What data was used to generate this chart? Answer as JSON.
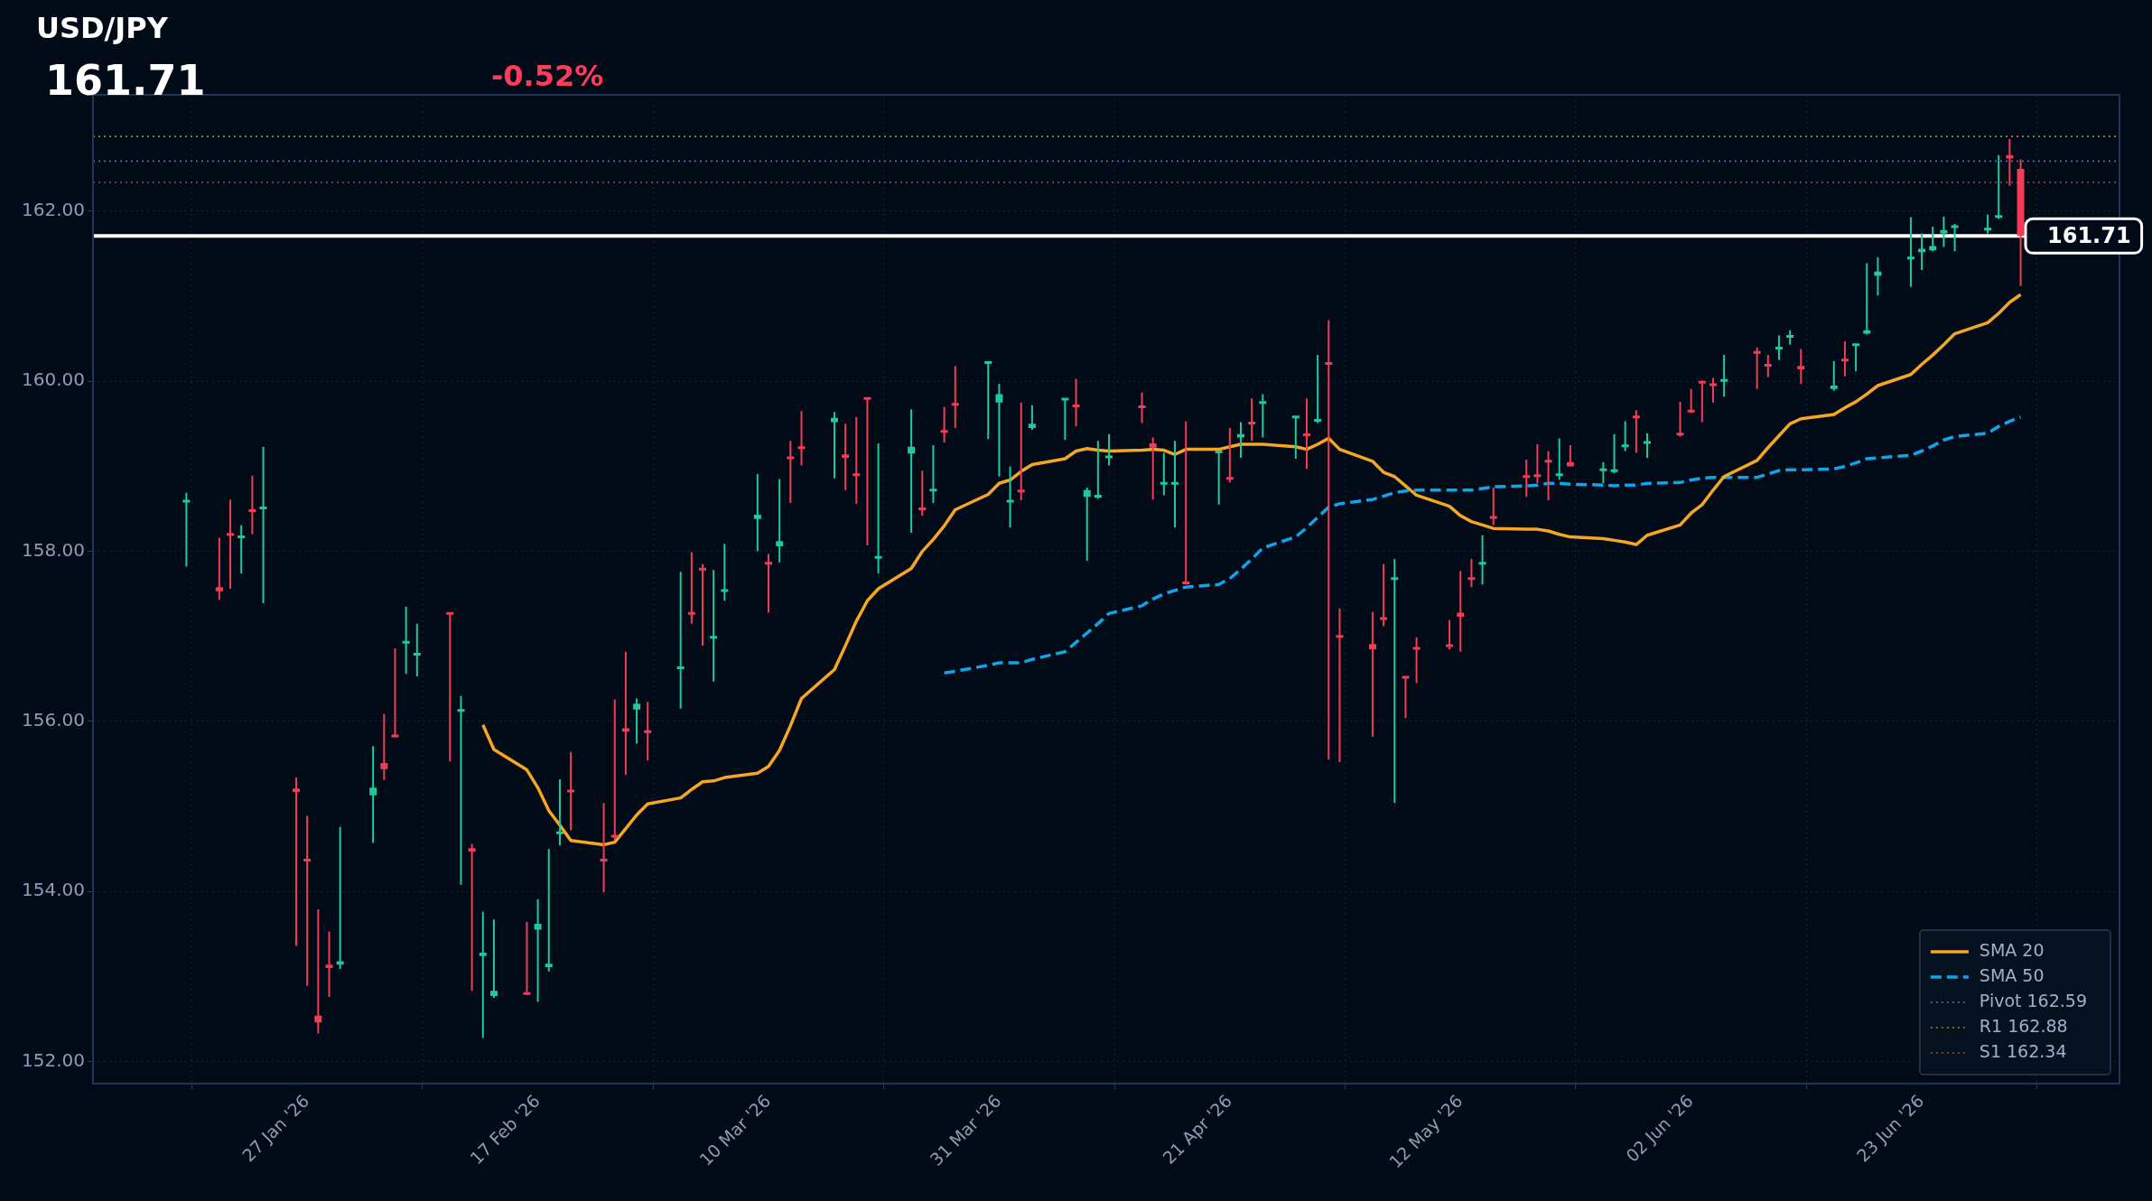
{
  "chart_data": {
    "type": "candlestick",
    "title": "USD/JPY",
    "subtitle": "161.71",
    "annotations": [
      "-0.52%"
    ],
    "x": [
      "2026-01-16",
      "2026-01-19",
      "2026-01-20",
      "2026-01-21",
      "2026-01-22",
      "2026-01-23",
      "2026-01-26",
      "2026-01-27",
      "2026-01-28",
      "2026-01-29",
      "2026-01-30",
      "2026-02-02",
      "2026-02-03",
      "2026-02-04",
      "2026-02-05",
      "2026-02-06",
      "2026-02-09",
      "2026-02-10",
      "2026-02-11",
      "2026-02-12",
      "2026-02-13",
      "2026-02-16",
      "2026-02-17",
      "2026-02-18",
      "2026-02-19",
      "2026-02-20",
      "2026-02-23",
      "2026-02-24",
      "2026-02-25",
      "2026-02-26",
      "2026-02-27",
      "2026-03-02",
      "2026-03-03",
      "2026-03-04",
      "2026-03-05",
      "2026-03-06",
      "2026-03-09",
      "2026-03-10",
      "2026-03-11",
      "2026-03-12",
      "2026-03-13",
      "2026-03-16",
      "2026-03-17",
      "2026-03-18",
      "2026-03-19",
      "2026-03-20",
      "2026-03-23",
      "2026-03-24",
      "2026-03-25",
      "2026-03-26",
      "2026-03-27",
      "2026-03-30",
      "2026-03-31",
      "2026-04-01",
      "2026-04-02",
      "2026-04-03",
      "2026-04-06",
      "2026-04-07",
      "2026-04-08",
      "2026-04-09",
      "2026-04-10",
      "2026-04-13",
      "2026-04-14",
      "2026-04-15",
      "2026-04-16",
      "2026-04-17",
      "2026-04-20",
      "2026-04-21",
      "2026-04-22",
      "2026-04-23",
      "2026-04-24",
      "2026-04-27",
      "2026-04-28",
      "2026-04-29",
      "2026-04-30",
      "2026-05-01",
      "2026-05-04",
      "2026-05-05",
      "2026-05-06",
      "2026-05-07",
      "2026-05-08",
      "2026-05-11",
      "2026-05-12",
      "2026-05-13",
      "2026-05-14",
      "2026-05-15",
      "2026-05-18",
      "2026-05-19",
      "2026-05-20",
      "2026-05-21",
      "2026-05-22",
      "2026-05-25",
      "2026-05-26",
      "2026-05-27",
      "2026-05-28",
      "2026-05-29",
      "2026-06-01",
      "2026-06-02",
      "2026-06-03",
      "2026-06-04",
      "2026-06-05",
      "2026-06-08",
      "2026-06-09",
      "2026-06-10",
      "2026-06-11",
      "2026-06-12",
      "2026-06-15",
      "2026-06-16",
      "2026-06-17",
      "2026-06-18",
      "2026-06-19",
      "2026-06-22",
      "2026-06-23",
      "2026-06-24",
      "2026-06-25",
      "2026-06-26",
      "2026-06-29",
      "2026-06-30",
      "2026-07-01",
      "2026-07-02"
    ],
    "ohlc": [
      [
        158.56,
        158.69,
        157.82,
        158.59
      ],
      [
        157.58,
        158.16,
        157.43,
        157.53
      ],
      [
        158.2,
        158.61,
        157.56,
        158.17
      ],
      [
        158.15,
        158.31,
        157.74,
        158.17
      ],
      [
        158.48,
        158.89,
        158.2,
        158.45
      ],
      [
        158.48,
        159.23,
        157.39,
        158.51
      ],
      [
        155.21,
        155.34,
        153.36,
        155.17
      ],
      [
        154.37,
        154.89,
        152.89,
        154.35
      ],
      [
        152.54,
        153.79,
        152.33,
        152.46
      ],
      [
        153.14,
        153.53,
        152.76,
        153.1
      ],
      [
        153.14,
        154.76,
        153.09,
        153.18
      ],
      [
        155.13,
        155.71,
        154.57,
        155.22
      ],
      [
        155.51,
        156.09,
        155.31,
        155.44
      ],
      [
        155.83,
        156.86,
        155.81,
        155.81
      ],
      [
        156.9,
        157.35,
        156.56,
        156.93
      ],
      [
        156.76,
        157.15,
        156.53,
        156.79
      ],
      [
        157.27,
        157.28,
        155.53,
        157.24
      ],
      [
        156.11,
        156.3,
        154.08,
        156.13
      ],
      [
        154.51,
        154.56,
        152.83,
        154.47
      ],
      [
        153.24,
        153.76,
        152.28,
        153.28
      ],
      [
        152.77,
        153.67,
        152.75,
        152.83
      ],
      [
        152.8,
        153.64,
        152.78,
        152.78
      ],
      [
        153.55,
        153.91,
        152.7,
        153.62
      ],
      [
        153.11,
        154.5,
        153.06,
        153.15
      ],
      [
        154.67,
        155.32,
        154.54,
        154.69
      ],
      [
        155.18,
        155.64,
        154.72,
        155.17
      ],
      [
        154.37,
        155.04,
        153.99,
        154.35
      ],
      [
        154.65,
        156.26,
        154.61,
        154.63
      ],
      [
        155.92,
        156.82,
        155.37,
        155.88
      ],
      [
        156.14,
        156.27,
        155.74,
        156.21
      ],
      [
        155.88,
        156.23,
        155.54,
        155.87
      ],
      [
        156.61,
        157.76,
        156.15,
        156.63
      ],
      [
        157.27,
        157.99,
        157.15,
        157.26
      ],
      [
        157.79,
        157.85,
        156.89,
        157.78
      ],
      [
        156.97,
        157.78,
        156.47,
        156.99
      ],
      [
        157.52,
        158.09,
        157.42,
        157.54
      ],
      [
        158.38,
        158.91,
        158.0,
        158.43
      ],
      [
        157.86,
        157.97,
        157.28,
        157.85
      ],
      [
        158.06,
        158.85,
        157.87,
        158.12
      ],
      [
        159.1,
        159.3,
        158.57,
        159.07
      ],
      [
        159.22,
        159.65,
        159.01,
        159.2
      ],
      [
        159.52,
        159.64,
        158.86,
        159.57
      ],
      [
        159.14,
        159.5,
        158.72,
        159.1
      ],
      [
        158.9,
        159.58,
        158.56,
        158.89
      ],
      [
        159.8,
        159.81,
        158.07,
        159.79
      ],
      [
        157.91,
        159.27,
        157.74,
        157.93
      ],
      [
        159.15,
        159.67,
        158.22,
        159.23
      ],
      [
        158.5,
        158.95,
        158.42,
        158.48
      ],
      [
        158.7,
        159.25,
        158.57,
        158.72
      ],
      [
        159.41,
        159.7,
        159.28,
        159.39
      ],
      [
        159.73,
        160.18,
        159.45,
        159.71
      ],
      [
        160.2,
        160.24,
        159.32,
        160.22
      ],
      [
        159.75,
        159.97,
        158.88,
        159.85
      ],
      [
        158.57,
        159.0,
        158.28,
        158.59
      ],
      [
        158.71,
        159.75,
        158.6,
        158.69
      ],
      [
        159.45,
        159.72,
        159.43,
        159.5
      ],
      [
        159.76,
        159.8,
        159.31,
        159.79
      ],
      [
        159.71,
        160.03,
        159.47,
        159.69
      ],
      [
        158.64,
        158.75,
        157.89,
        158.72
      ],
      [
        158.63,
        159.3,
        158.62,
        158.65
      ],
      [
        159.09,
        159.38,
        159.01,
        159.11
      ],
      [
        159.7,
        159.87,
        159.51,
        159.68
      ],
      [
        159.27,
        159.34,
        158.61,
        159.22
      ],
      [
        158.77,
        159.16,
        158.66,
        158.8
      ],
      [
        158.78,
        159.3,
        158.28,
        158.8
      ],
      [
        157.63,
        159.53,
        157.61,
        157.61
      ],
      [
        159.15,
        159.18,
        158.55,
        159.17
      ],
      [
        158.86,
        159.45,
        158.81,
        158.84
      ],
      [
        159.34,
        159.52,
        159.1,
        159.38
      ],
      [
        159.51,
        159.8,
        159.3,
        159.49
      ],
      [
        159.73,
        159.85,
        159.34,
        159.75
      ],
      [
        159.56,
        159.59,
        159.09,
        159.58
      ],
      [
        159.37,
        159.8,
        158.97,
        159.35
      ],
      [
        159.52,
        160.31,
        159.51,
        159.54
      ],
      [
        160.21,
        160.72,
        155.55,
        160.19
      ],
      [
        157.0,
        157.33,
        155.52,
        156.98
      ],
      [
        156.91,
        157.29,
        155.82,
        156.85
      ],
      [
        157.21,
        157.85,
        157.12,
        157.2
      ],
      [
        157.66,
        157.91,
        155.04,
        157.68
      ],
      [
        156.52,
        156.53,
        156.04,
        156.5
      ],
      [
        156.86,
        156.99,
        156.45,
        156.85
      ],
      [
        156.89,
        157.19,
        156.85,
        156.87
      ],
      [
        157.28,
        157.77,
        156.82,
        157.23
      ],
      [
        157.68,
        157.91,
        157.58,
        157.66
      ],
      [
        157.84,
        158.19,
        157.61,
        157.86
      ],
      [
        158.4,
        158.75,
        158.31,
        158.39
      ],
      [
        158.88,
        159.08,
        158.64,
        158.87
      ],
      [
        158.89,
        159.26,
        158.8,
        158.87
      ],
      [
        159.06,
        159.18,
        158.6,
        159.04
      ],
      [
        158.88,
        159.33,
        158.84,
        158.9
      ],
      [
        159.05,
        159.25,
        159.0,
        159.0
      ],
      [
        158.94,
        159.05,
        158.8,
        158.96
      ],
      [
        158.93,
        159.38,
        158.92,
        158.95
      ],
      [
        159.22,
        159.53,
        159.18,
        159.24
      ],
      [
        159.58,
        159.66,
        159.16,
        159.56
      ],
      [
        159.26,
        159.39,
        159.1,
        159.28
      ],
      [
        159.38,
        159.76,
        159.35,
        159.36
      ],
      [
        159.65,
        159.91,
        159.63,
        159.64
      ],
      [
        159.99,
        160.01,
        159.52,
        159.97
      ],
      [
        159.96,
        160.04,
        159.75,
        159.95
      ],
      [
        160.0,
        160.31,
        159.82,
        160.01
      ],
      [
        160.34,
        160.4,
        159.91,
        160.33
      ],
      [
        160.19,
        160.31,
        160.05,
        160.18
      ],
      [
        160.38,
        160.54,
        160.25,
        160.39
      ],
      [
        160.51,
        160.6,
        160.43,
        160.53
      ],
      [
        160.18,
        160.38,
        159.97,
        160.14
      ],
      [
        159.91,
        160.24,
        159.89,
        159.95
      ],
      [
        160.25,
        160.47,
        160.06,
        160.23
      ],
      [
        160.41,
        160.43,
        160.12,
        160.43
      ],
      [
        160.56,
        161.39,
        160.55,
        160.6
      ],
      [
        161.24,
        161.46,
        161.01,
        161.29
      ],
      [
        161.43,
        161.93,
        161.11,
        161.45
      ],
      [
        161.52,
        161.74,
        161.31,
        161.56
      ],
      [
        161.54,
        161.82,
        161.53,
        161.59
      ],
      [
        161.74,
        161.94,
        161.58,
        161.78
      ],
      [
        161.8,
        161.85,
        161.53,
        161.82
      ],
      [
        161.77,
        161.96,
        161.74,
        161.79
      ],
      [
        161.92,
        162.66,
        161.91,
        161.94
      ],
      [
        162.66,
        162.85,
        162.3,
        162.62
      ],
      [
        162.5,
        162.61,
        161.12,
        161.71
      ]
    ],
    "colors": [
      "#1ec99b",
      "#f23b57",
      "#f23b57",
      "#1ec99b",
      "#f23b57",
      "#1ec99b",
      "#f23b57",
      "#f23b57",
      "#f23b57",
      "#f23b57",
      "#1ec99b",
      "#1ec99b",
      "#f23b57",
      "#f23b57",
      "#1ec99b",
      "#1ec99b",
      "#f23b57",
      "#1ec99b",
      "#f23b57",
      "#1ec99b",
      "#1ec99b",
      "#f23b57",
      "#1ec99b",
      "#1ec99b",
      "#1ec99b",
      "#f23b57",
      "#f23b57",
      "#f23b57",
      "#f23b57",
      "#1ec99b",
      "#f23b57",
      "#1ec99b",
      "#f23b57",
      "#f23b57",
      "#1ec99b",
      "#1ec99b",
      "#1ec99b",
      "#f23b57",
      "#1ec99b",
      "#f23b57",
      "#f23b57",
      "#1ec99b",
      "#f23b57",
      "#f23b57",
      "#f23b57",
      "#1ec99b",
      "#1ec99b",
      "#f23b57",
      "#1ec99b",
      "#f23b57",
      "#f23b57",
      "#1ec99b",
      "#1ec99b",
      "#1ec99b",
      "#f23b57",
      "#1ec99b",
      "#1ec99b",
      "#f23b57",
      "#1ec99b",
      "#1ec99b",
      "#1ec99b",
      "#f23b57",
      "#f23b57",
      "#1ec99b",
      "#1ec99b",
      "#f23b57",
      "#1ec99b",
      "#f23b57",
      "#1ec99b",
      "#f23b57",
      "#1ec99b",
      "#1ec99b",
      "#f23b57",
      "#1ec99b",
      "#f23b57",
      "#f23b57",
      "#f23b57",
      "#f23b57",
      "#1ec99b",
      "#f23b57",
      "#f23b57",
      "#f23b57",
      "#f23b57",
      "#f23b57",
      "#1ec99b",
      "#f23b57",
      "#f23b57",
      "#f23b57",
      "#f23b57",
      "#1ec99b",
      "#f23b57",
      "#1ec99b",
      "#1ec99b",
      "#1ec99b",
      "#f23b57",
      "#1ec99b",
      "#f23b57",
      "#f23b57",
      "#f23b57",
      "#f23b57",
      "#1ec99b",
      "#f23b57",
      "#f23b57",
      "#1ec99b",
      "#1ec99b",
      "#f23b57",
      "#1ec99b",
      "#f23b57",
      "#1ec99b",
      "#1ec99b",
      "#1ec99b",
      "#1ec99b",
      "#1ec99b",
      "#1ec99b",
      "#1ec99b",
      "#1ec99b",
      "#1ec99b",
      "#1ec99b",
      "#f23b57",
      "#f23b57"
    ],
    "series": [
      {
        "type": "line",
        "name": "SMA 20",
        "color": "#f5a623",
        "line_style": "solid",
        "x": [
          "2026-02-12",
          "2026-02-13",
          "2026-02-16",
          "2026-02-17",
          "2026-02-18",
          "2026-02-19",
          "2026-02-20",
          "2026-02-23",
          "2026-02-24",
          "2026-02-25",
          "2026-02-26",
          "2026-02-27",
          "2026-03-02",
          "2026-03-03",
          "2026-03-04",
          "2026-03-05",
          "2026-03-06",
          "2026-03-09",
          "2026-03-10",
          "2026-03-11",
          "2026-03-12",
          "2026-03-13",
          "2026-03-16",
          "2026-03-17",
          "2026-03-18",
          "2026-03-19",
          "2026-03-20",
          "2026-03-23",
          "2026-03-24",
          "2026-03-25",
          "2026-03-26",
          "2026-03-27",
          "2026-03-30",
          "2026-03-31",
          "2026-04-01",
          "2026-04-02",
          "2026-04-03",
          "2026-04-06",
          "2026-04-07",
          "2026-04-08",
          "2026-04-09",
          "2026-04-10",
          "2026-04-13",
          "2026-04-14",
          "2026-04-15",
          "2026-04-16",
          "2026-04-17",
          "2026-04-20",
          "2026-04-21",
          "2026-04-22",
          "2026-04-23",
          "2026-04-24",
          "2026-04-27",
          "2026-04-28",
          "2026-04-29",
          "2026-04-30",
          "2026-05-01",
          "2026-05-04",
          "2026-05-05",
          "2026-05-06",
          "2026-05-07",
          "2026-05-08",
          "2026-05-11",
          "2026-05-12",
          "2026-05-13",
          "2026-05-14",
          "2026-05-15",
          "2026-05-18",
          "2026-05-19",
          "2026-05-20",
          "2026-05-21",
          "2026-05-22",
          "2026-05-25",
          "2026-05-26",
          "2026-05-27",
          "2026-05-28",
          "2026-05-29",
          "2026-06-01",
          "2026-06-02",
          "2026-06-03",
          "2026-06-04",
          "2026-06-05",
          "2026-06-08",
          "2026-06-09",
          "2026-06-10",
          "2026-06-11",
          "2026-06-12",
          "2026-06-15",
          "2026-06-16",
          "2026-06-17",
          "2026-06-18",
          "2026-06-19",
          "2026-06-22",
          "2026-06-23",
          "2026-06-24",
          "2026-06-25",
          "2026-06-26",
          "2026-06-29",
          "2026-06-30",
          "2026-07-01",
          "2026-07-02"
        ],
        "values": [
          155.96,
          155.67,
          155.43,
          155.22,
          154.95,
          154.78,
          154.6,
          154.55,
          154.58,
          154.74,
          154.9,
          155.03,
          155.1,
          155.2,
          155.29,
          155.3,
          155.34,
          155.39,
          155.47,
          155.66,
          155.95,
          156.27,
          156.61,
          156.89,
          157.18,
          157.42,
          157.56,
          157.8,
          158.0,
          158.14,
          158.3,
          158.49,
          158.67,
          158.8,
          158.84,
          158.94,
          159.02,
          159.09,
          159.18,
          159.21,
          159.19,
          159.18,
          159.19,
          159.2,
          159.19,
          159.14,
          159.2,
          159.2,
          159.23,
          159.26,
          159.26,
          159.26,
          159.23,
          159.2,
          159.26,
          159.33,
          159.2,
          159.06,
          158.93,
          158.88,
          158.77,
          158.66,
          158.53,
          158.42,
          158.35,
          158.31,
          158.27,
          158.26,
          158.26,
          158.24,
          158.2,
          158.17,
          158.15,
          158.13,
          158.11,
          158.08,
          158.19,
          158.31,
          158.45,
          158.55,
          158.72,
          158.88,
          159.07,
          159.22,
          159.36,
          159.5,
          159.56,
          159.61,
          159.69,
          159.76,
          159.85,
          159.95,
          160.08,
          160.2,
          160.31,
          160.43,
          160.56,
          160.69,
          160.8,
          160.93,
          161.02
        ]
      },
      {
        "type": "line",
        "name": "SMA 50",
        "color": "#0ea5e9",
        "line_style": "dashed",
        "x": [
          "2026-03-26",
          "2026-03-27",
          "2026-03-30",
          "2026-03-31",
          "2026-04-01",
          "2026-04-02",
          "2026-04-03",
          "2026-04-06",
          "2026-04-07",
          "2026-04-08",
          "2026-04-09",
          "2026-04-10",
          "2026-04-13",
          "2026-04-14",
          "2026-04-15",
          "2026-04-16",
          "2026-04-17",
          "2026-04-20",
          "2026-04-21",
          "2026-04-22",
          "2026-04-23",
          "2026-04-24",
          "2026-04-27",
          "2026-04-28",
          "2026-04-29",
          "2026-04-30",
          "2026-05-01",
          "2026-05-04",
          "2026-05-05",
          "2026-05-06",
          "2026-05-07",
          "2026-05-08",
          "2026-05-11",
          "2026-05-12",
          "2026-05-13",
          "2026-05-14",
          "2026-05-15",
          "2026-05-18",
          "2026-05-19",
          "2026-05-20",
          "2026-05-21",
          "2026-05-22",
          "2026-05-25",
          "2026-05-26",
          "2026-05-27",
          "2026-05-28",
          "2026-05-29",
          "2026-06-01",
          "2026-06-02",
          "2026-06-03",
          "2026-06-04",
          "2026-06-05",
          "2026-06-08",
          "2026-06-09",
          "2026-06-10",
          "2026-06-11",
          "2026-06-12",
          "2026-06-15",
          "2026-06-16",
          "2026-06-17",
          "2026-06-18",
          "2026-06-19",
          "2026-06-22",
          "2026-06-23",
          "2026-06-24",
          "2026-06-25",
          "2026-06-26",
          "2026-06-29",
          "2026-06-30",
          "2026-07-01",
          "2026-07-02"
        ],
        "values": [
          156.57,
          156.59,
          156.66,
          156.69,
          156.69,
          156.69,
          156.73,
          156.82,
          156.93,
          157.04,
          157.15,
          157.27,
          157.36,
          157.44,
          157.5,
          157.54,
          157.58,
          157.61,
          157.68,
          157.79,
          157.91,
          158.04,
          158.17,
          158.28,
          158.4,
          158.52,
          158.56,
          158.61,
          158.65,
          158.69,
          158.71,
          158.72,
          158.72,
          158.72,
          158.72,
          158.74,
          158.76,
          158.77,
          158.78,
          158.8,
          158.8,
          158.79,
          158.78,
          158.77,
          158.78,
          158.78,
          158.8,
          158.81,
          158.84,
          158.86,
          158.87,
          158.87,
          158.87,
          158.91,
          158.95,
          158.96,
          158.96,
          158.97,
          159.0,
          159.04,
          159.09,
          159.1,
          159.13,
          159.18,
          159.24,
          159.31,
          159.35,
          159.39,
          159.47,
          159.53,
          159.58
        ]
      }
    ],
    "ref_lines": [
      {
        "axis": "y",
        "value": 162.59,
        "label": "Pivot 162.59",
        "color": "#6577a8",
        "line_style": "dotted"
      },
      {
        "axis": "y",
        "value": 162.88,
        "label": "R1 162.88",
        "color": "#9c8a2c",
        "line_style": "dotted"
      },
      {
        "axis": "y",
        "value": 162.34,
        "label": "S1 162.34",
        "color": "#a84a3c",
        "line_style": "dotted"
      },
      {
        "axis": "y",
        "value": 161.71,
        "label": "161.71",
        "color": "#ffffff",
        "line_style": "solid"
      }
    ],
    "xlim": [
      "2026-01-07T12:00",
      "2026-07-11"
    ],
    "xticks": [
      {
        "value": "2026-01-27",
        "label": "27 Jan '26"
      },
      {
        "value": "2026-02-17",
        "label": "17 Feb '26"
      },
      {
        "value": "2026-03-10",
        "label": "10 Mar '26"
      },
      {
        "value": "2026-03-31",
        "label": "31 Mar '26"
      },
      {
        "value": "2026-04-21",
        "label": "21 Apr '26"
      },
      {
        "value": "2026-05-12",
        "label": "12 May '26"
      },
      {
        "value": "2026-06-02",
        "label": "02 Jun '26"
      },
      {
        "value": "2026-06-23",
        "label": "23 Jun '26"
      }
    ],
    "ylim": [
      151.74,
      163.37
    ],
    "yticks": [
      {
        "value": 152,
        "label": "152.00"
      },
      {
        "value": 154,
        "label": "154.00"
      },
      {
        "value": 156,
        "label": "156.00"
      },
      {
        "value": 158,
        "label": "158.00"
      },
      {
        "value": 160,
        "label": "160.00"
      },
      {
        "value": 162,
        "label": "162.00"
      }
    ],
    "grid": true,
    "legend": "bottom right",
    "marker": "none"
  }
}
